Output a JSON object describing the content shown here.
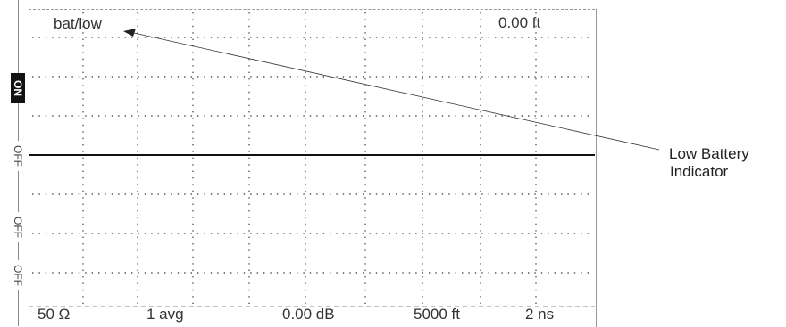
{
  "screen": {
    "status_text": "bat/low",
    "distance_readout": "0.00 ft"
  },
  "side_indicators": [
    "ON",
    "OFF",
    "OFF",
    "OFF"
  ],
  "status_bar": {
    "impedance": "50 Ω",
    "averaging": "1 avg",
    "gain": "0.00 dB",
    "range": "5000 ft",
    "pulse_width": "2 ns"
  },
  "callout": {
    "line1": "Low Battery",
    "line2": "Indicator"
  }
}
